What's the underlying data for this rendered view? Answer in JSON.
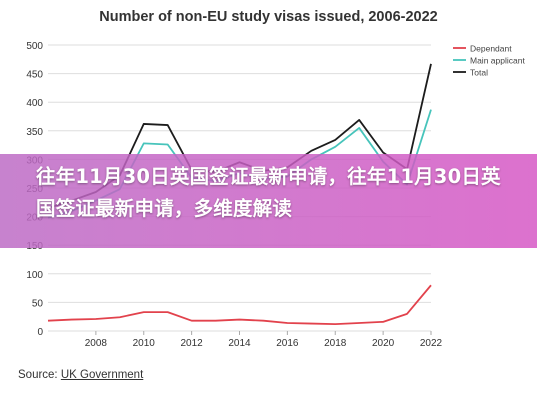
{
  "chart_data": {
    "type": "line",
    "title": "Number of non-EU study visas issued, 2006-2022",
    "x": [
      2006,
      2007,
      2008,
      2009,
      2010,
      2011,
      2012,
      2013,
      2014,
      2015,
      2016,
      2017,
      2018,
      2019,
      2020,
      2021,
      2022
    ],
    "x_ticks": [
      "2008",
      "2010",
      "2012",
      "2014",
      "2016",
      "2018",
      "2020",
      "2022"
    ],
    "y_ticks": [
      "0",
      "50",
      "100",
      "150",
      "200",
      "250",
      "300",
      "350",
      "400",
      "450",
      "500"
    ],
    "ylim": [
      0,
      500
    ],
    "xlim": [
      2006,
      2022
    ],
    "xlabel": "",
    "ylabel": "",
    "grid": "horizontal",
    "legend_position": "top-right",
    "series": [
      {
        "name": "Dependant",
        "color": "#e2424c",
        "values": [
          18,
          20,
          21,
          24,
          33,
          33,
          18,
          18,
          20,
          18,
          14,
          13,
          12,
          14,
          16,
          30,
          80
        ]
      },
      {
        "name": "Main applicant",
        "color": "#47c4bb",
        "values": [
          198,
          210,
          228,
          248,
          328,
          326,
          268,
          262,
          276,
          266,
          270,
          300,
          322,
          355,
          296,
          256,
          387
        ]
      },
      {
        "name": "Total",
        "color": "#1c1c1c",
        "values": [
          215,
          228,
          243,
          272,
          362,
          360,
          282,
          278,
          295,
          280,
          286,
          315,
          334,
          369,
          312,
          283,
          467
        ]
      }
    ]
  },
  "source": {
    "label": "Source: ",
    "link": "UK Government"
  },
  "overlay": {
    "title": "往年11月30日英国签证最新申请，往年11月30日英国签证最新申请，多维度解读"
  }
}
